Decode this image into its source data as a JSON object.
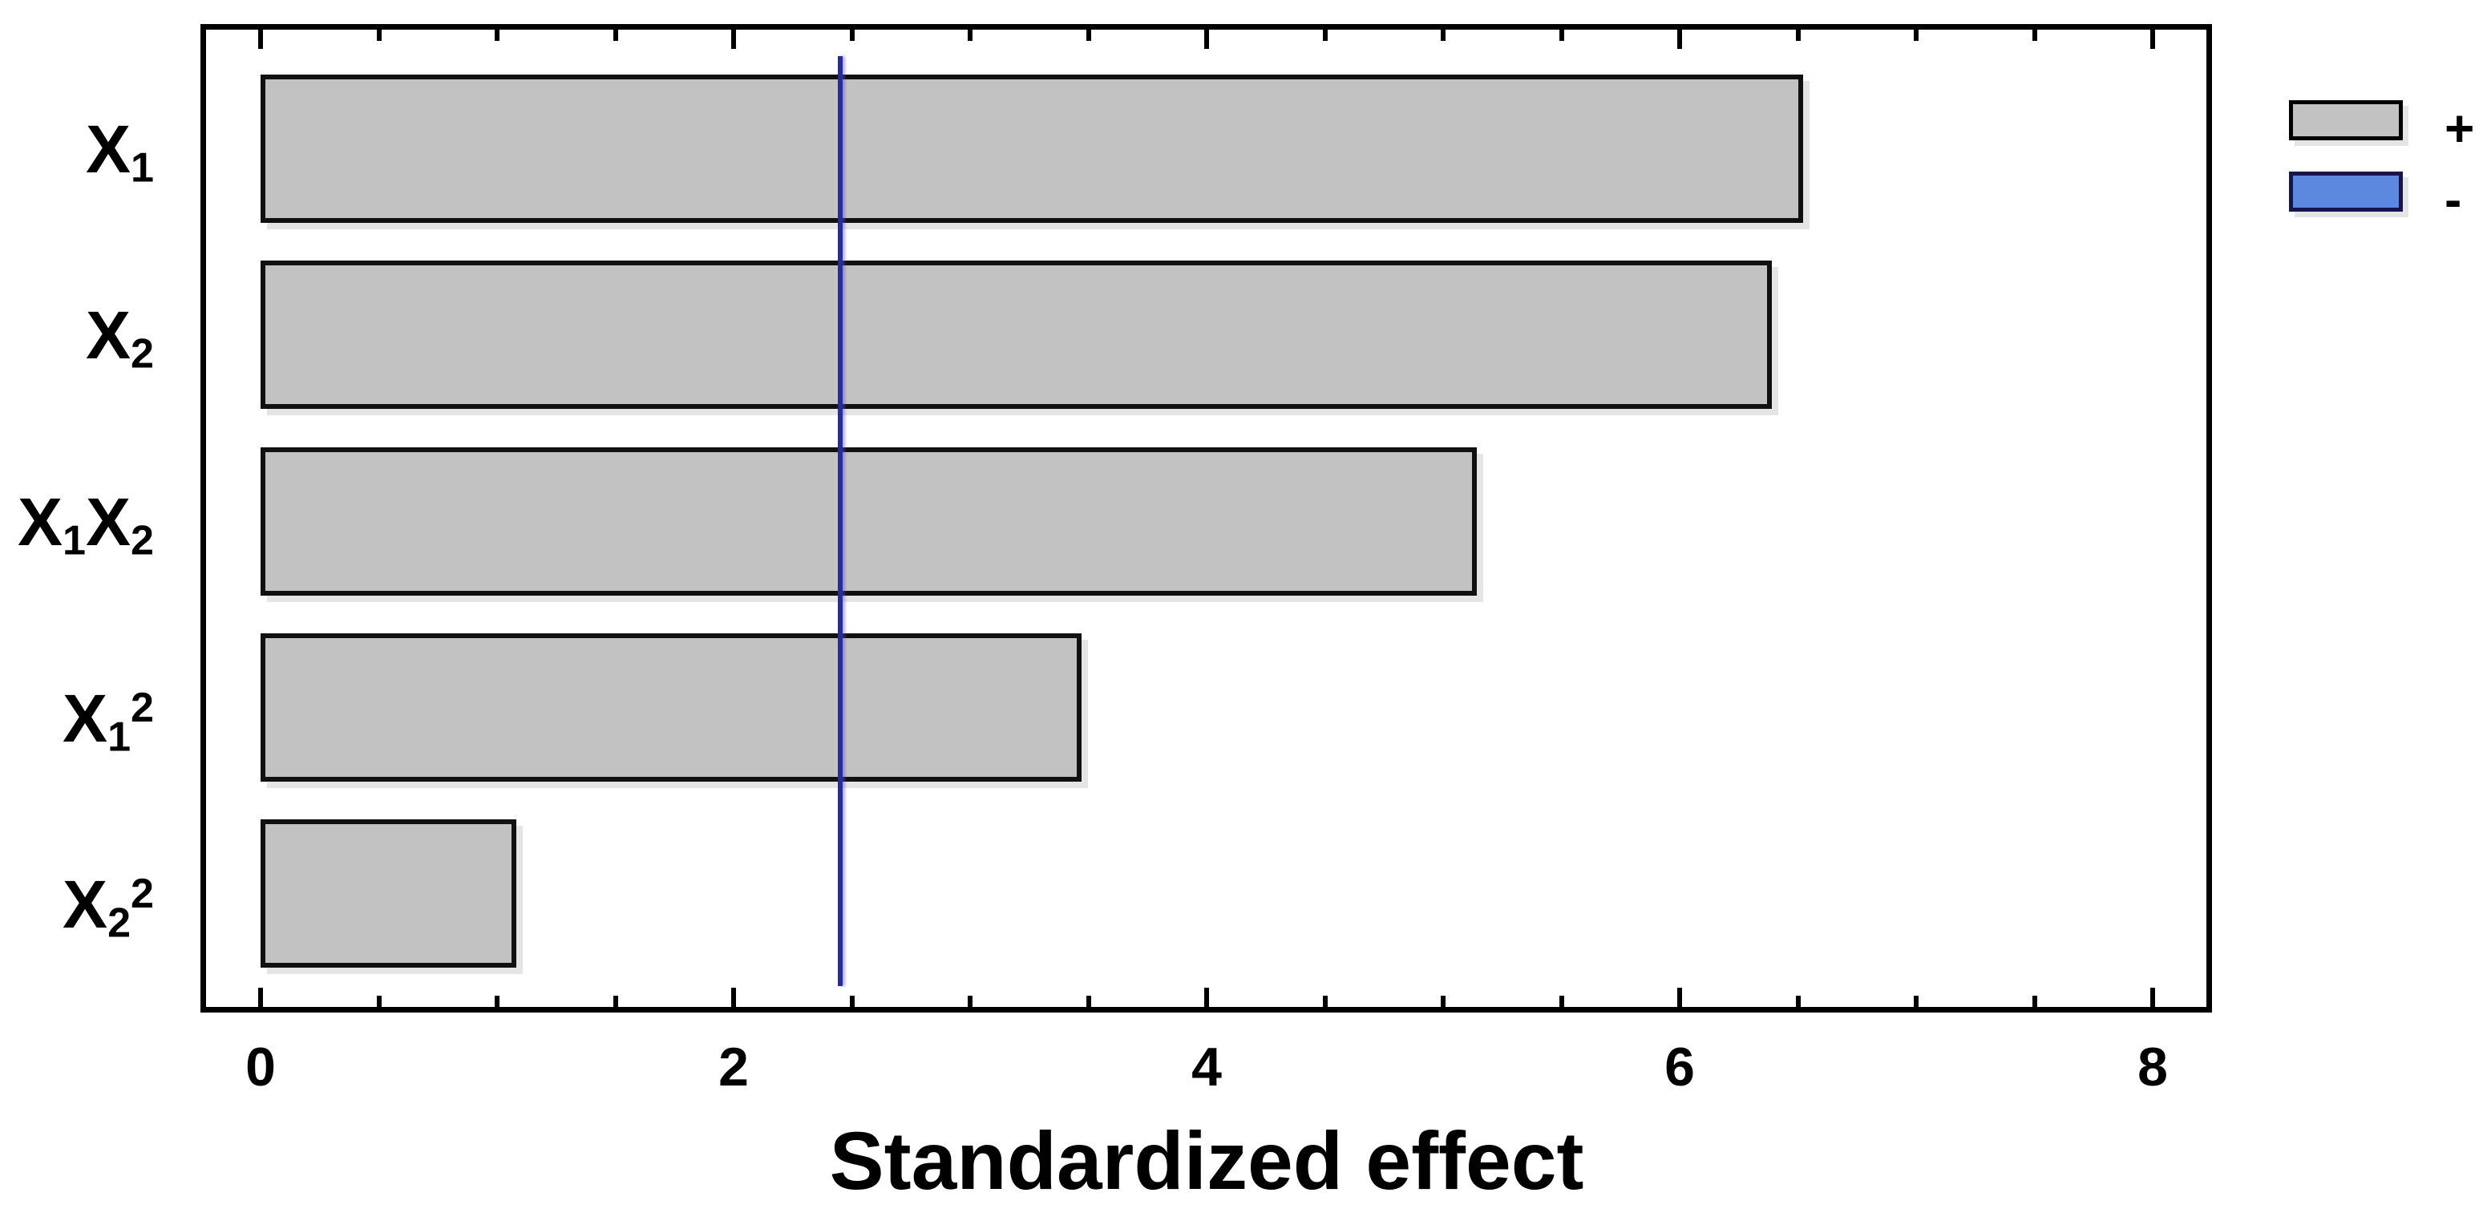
{
  "chart_data": {
    "type": "bar",
    "orientation": "horizontal",
    "title": "Standardized effect",
    "xlabel": "Standardized effect",
    "ylabel": "",
    "categories": [
      {
        "name": "x1",
        "display": "X1",
        "parts": [
          {
            "text": "X"
          },
          {
            "text": "1",
            "script": "sub"
          }
        ]
      },
      {
        "name": "x2",
        "display": "X2",
        "parts": [
          {
            "text": "X"
          },
          {
            "text": "2",
            "script": "sub"
          }
        ]
      },
      {
        "name": "x1x2",
        "display": "X1X2",
        "parts": [
          {
            "text": "X"
          },
          {
            "text": "1",
            "script": "sub"
          },
          {
            "text": "X"
          },
          {
            "text": "2",
            "script": "sub"
          }
        ]
      },
      {
        "name": "x1sq",
        "display": "X1^2",
        "parts": [
          {
            "text": "X"
          },
          {
            "text": "1",
            "script": "sub"
          },
          {
            "text": "2",
            "script": "sup"
          }
        ]
      },
      {
        "name": "x2sq",
        "display": "X2^2",
        "parts": [
          {
            "text": "X"
          },
          {
            "text": "2",
            "script": "sub"
          },
          {
            "text": "2",
            "script": "sup"
          }
        ]
      }
    ],
    "values": [
      6.52,
      6.39,
      5.14,
      3.47,
      1.08
    ],
    "bar_sign": [
      "+",
      "+",
      "+",
      "+",
      "+"
    ],
    "x_axis": {
      "min": -0.24,
      "max": 8.25,
      "major_ticks": [
        0,
        2,
        4,
        6,
        8
      ],
      "major_tick_labels": [
        "0",
        "2",
        "4",
        "6",
        "8"
      ],
      "minor_tick_step": 0.5
    },
    "reference_line": {
      "value": 2.45,
      "color": "#2A2AA0"
    },
    "colors": {
      "positive_bar_fill": "#C2C2C2",
      "negative_bar_fill": "#5C88DF",
      "bar_border": "#111111",
      "negative_border": "#16164A",
      "plot_border": "#000000"
    },
    "legend": [
      {
        "label": "+",
        "swatch_color": "#C2C2C2",
        "swatch_border": "#000000"
      },
      {
        "label": "-",
        "swatch_color": "#5C88DF",
        "swatch_border": "#16164A"
      }
    ],
    "grid": false,
    "legend_position": "top-right-outside"
  }
}
